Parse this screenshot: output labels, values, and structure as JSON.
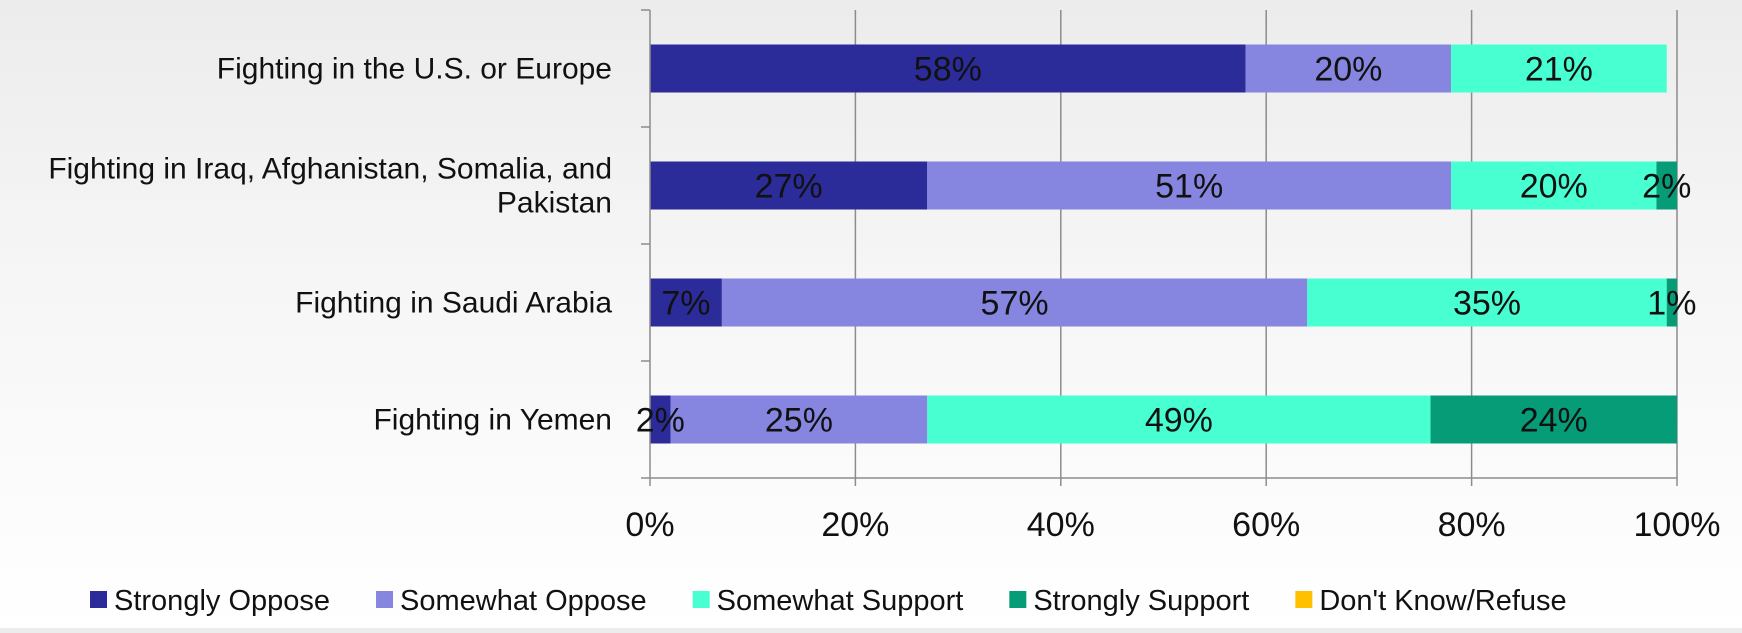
{
  "chart_data": {
    "type": "bar",
    "orientation": "horizontal",
    "stacked": true,
    "normalized": true,
    "categories": [
      [
        "Fighting in the U.S. or Europe"
      ],
      [
        "Fighting in Iraq, Afghanistan, Somalia, and",
        "Pakistan"
      ],
      [
        "Fighting in Saudi Arabia"
      ],
      [
        "Fighting in Yemen"
      ]
    ],
    "series": [
      {
        "name": "Strongly Oppose",
        "color": "#2B2B99",
        "values": [
          58,
          27,
          7,
          2
        ],
        "labels": [
          "58%",
          "27%",
          "7%",
          "2%"
        ]
      },
      {
        "name": "Somewhat Oppose",
        "color": "#8686E0",
        "values": [
          20,
          51,
          57,
          25
        ],
        "labels": [
          "20%",
          "51%",
          "57%",
          "25%"
        ]
      },
      {
        "name": "Somewhat Support",
        "color": "#47FFD1",
        "values": [
          21,
          20,
          35,
          49
        ],
        "labels": [
          "21%",
          "20%",
          "35%",
          "49%"
        ]
      },
      {
        "name": "Strongly Support",
        "color": "#079C78",
        "values": [
          0,
          2,
          1,
          24
        ],
        "labels": [
          "",
          "2%",
          "1%",
          "24%"
        ]
      },
      {
        "name": "Don't Know/Refuse",
        "color": "#FFC000",
        "values": [
          0,
          0,
          0,
          0
        ],
        "labels": [
          "",
          "",
          "",
          ""
        ]
      }
    ],
    "x_ticks": [
      "0%",
      "20%",
      "40%",
      "60%",
      "80%",
      "100%"
    ],
    "xlim": [
      0,
      100
    ],
    "grid": "vertical",
    "legend_position": "bottom"
  }
}
